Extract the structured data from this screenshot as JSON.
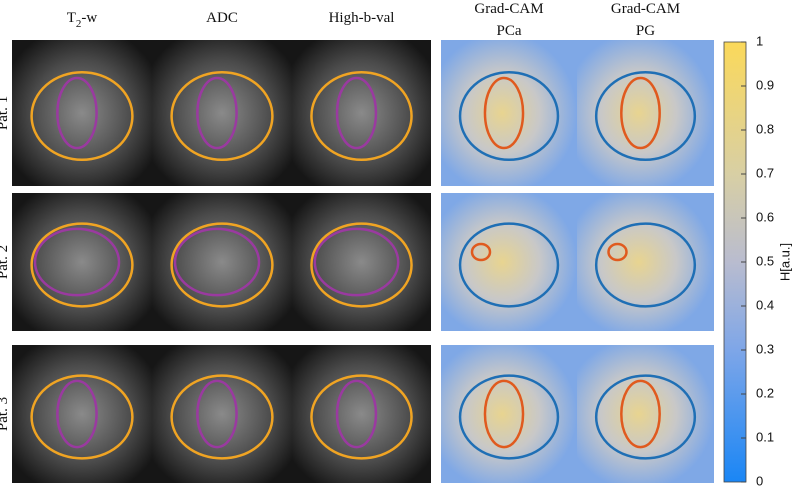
{
  "columns": [
    {
      "parts": [
        "T",
        "2",
        "-w"
      ]
    },
    {
      "lines": [
        "ADC"
      ]
    },
    {
      "lines": [
        "High-b-val"
      ]
    },
    {
      "lines": [
        "Grad-CAM",
        "PCa"
      ]
    },
    {
      "lines": [
        "Grad-CAM",
        "PG"
      ]
    }
  ],
  "rows": [
    "Pat. 1",
    "Pat. 2",
    "Pat. 3"
  ],
  "colorbar": {
    "label": "H[a.u.]",
    "lim": [
      0,
      1
    ],
    "ticks": [
      0,
      0.1,
      0.2,
      0.3,
      0.4,
      0.5,
      0.6,
      0.7,
      0.8,
      0.9,
      1
    ]
  }
}
